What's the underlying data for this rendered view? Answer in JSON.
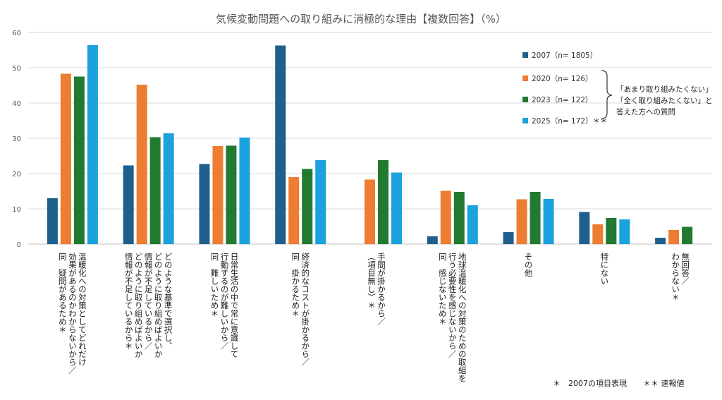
{
  "chart_data": {
    "type": "bar",
    "title": "気候変動問題への取り組みに消極的な理由【複数回答】（%）",
    "ylim": [
      0,
      60
    ],
    "yticks": [
      0,
      10,
      20,
      30,
      40,
      50,
      60
    ],
    "grid": true,
    "legend_position": "top-right",
    "categories": [
      [
        "温暖化への対策としてどれだけ",
        "効果があるのかわからないから／",
        "同　疑問があるため＊"
      ],
      [
        "どのような基準で選択し、",
        "どのように取り組めばよいか",
        "情報が不足しているから／",
        "どのように取り組めばよいか",
        "情報が不足しているから＊"
      ],
      [
        "日常生活の中で常に意識して",
        "行動するのが難しいから／",
        "同　難しいため＊"
      ],
      [
        "経済的なコストが掛かるから／",
        "同　掛かるため＊"
      ],
      [
        "手間が掛かるから／",
        "（項目無し）＊"
      ],
      [
        "地球温暖化への対策のための取組を",
        "行う必要性を感じないから／",
        "同　感じないため＊"
      ],
      [
        "その他"
      ],
      [
        "特にない"
      ],
      [
        "無回答／",
        "わからない＊"
      ]
    ],
    "series": [
      {
        "name": "2007（n= 1805）",
        "color": "#1f5f8b",
        "values": [
          13,
          22.3,
          22.7,
          56.3,
          null,
          2.2,
          3.4,
          9.1,
          1.8
        ]
      },
      {
        "name": "2020（n= 126）",
        "color": "#ed7d31",
        "values": [
          48.3,
          45.2,
          27.8,
          19.0,
          18.3,
          15.1,
          12.7,
          5.6,
          4.0
        ]
      },
      {
        "name": "2023（n= 122）",
        "color": "#217a2f",
        "values": [
          47.5,
          30.3,
          27.9,
          21.3,
          23.8,
          14.8,
          14.8,
          7.4,
          4.9
        ]
      },
      {
        "name": "2025（n= 172）＊＊",
        "color": "#1ba1dd",
        "values": [
          56.4,
          31.4,
          30.2,
          23.8,
          20.3,
          11.0,
          12.8,
          7.0,
          null
        ]
      }
    ],
    "bracket_note": [
      "「あまり取り組みたくない」",
      "「全く取り組みたくない」と",
      "答えた方への質問"
    ]
  },
  "footnotes": {
    "note1": "＊　2007の項目表現",
    "note2": "＊＊ 速報値"
  }
}
